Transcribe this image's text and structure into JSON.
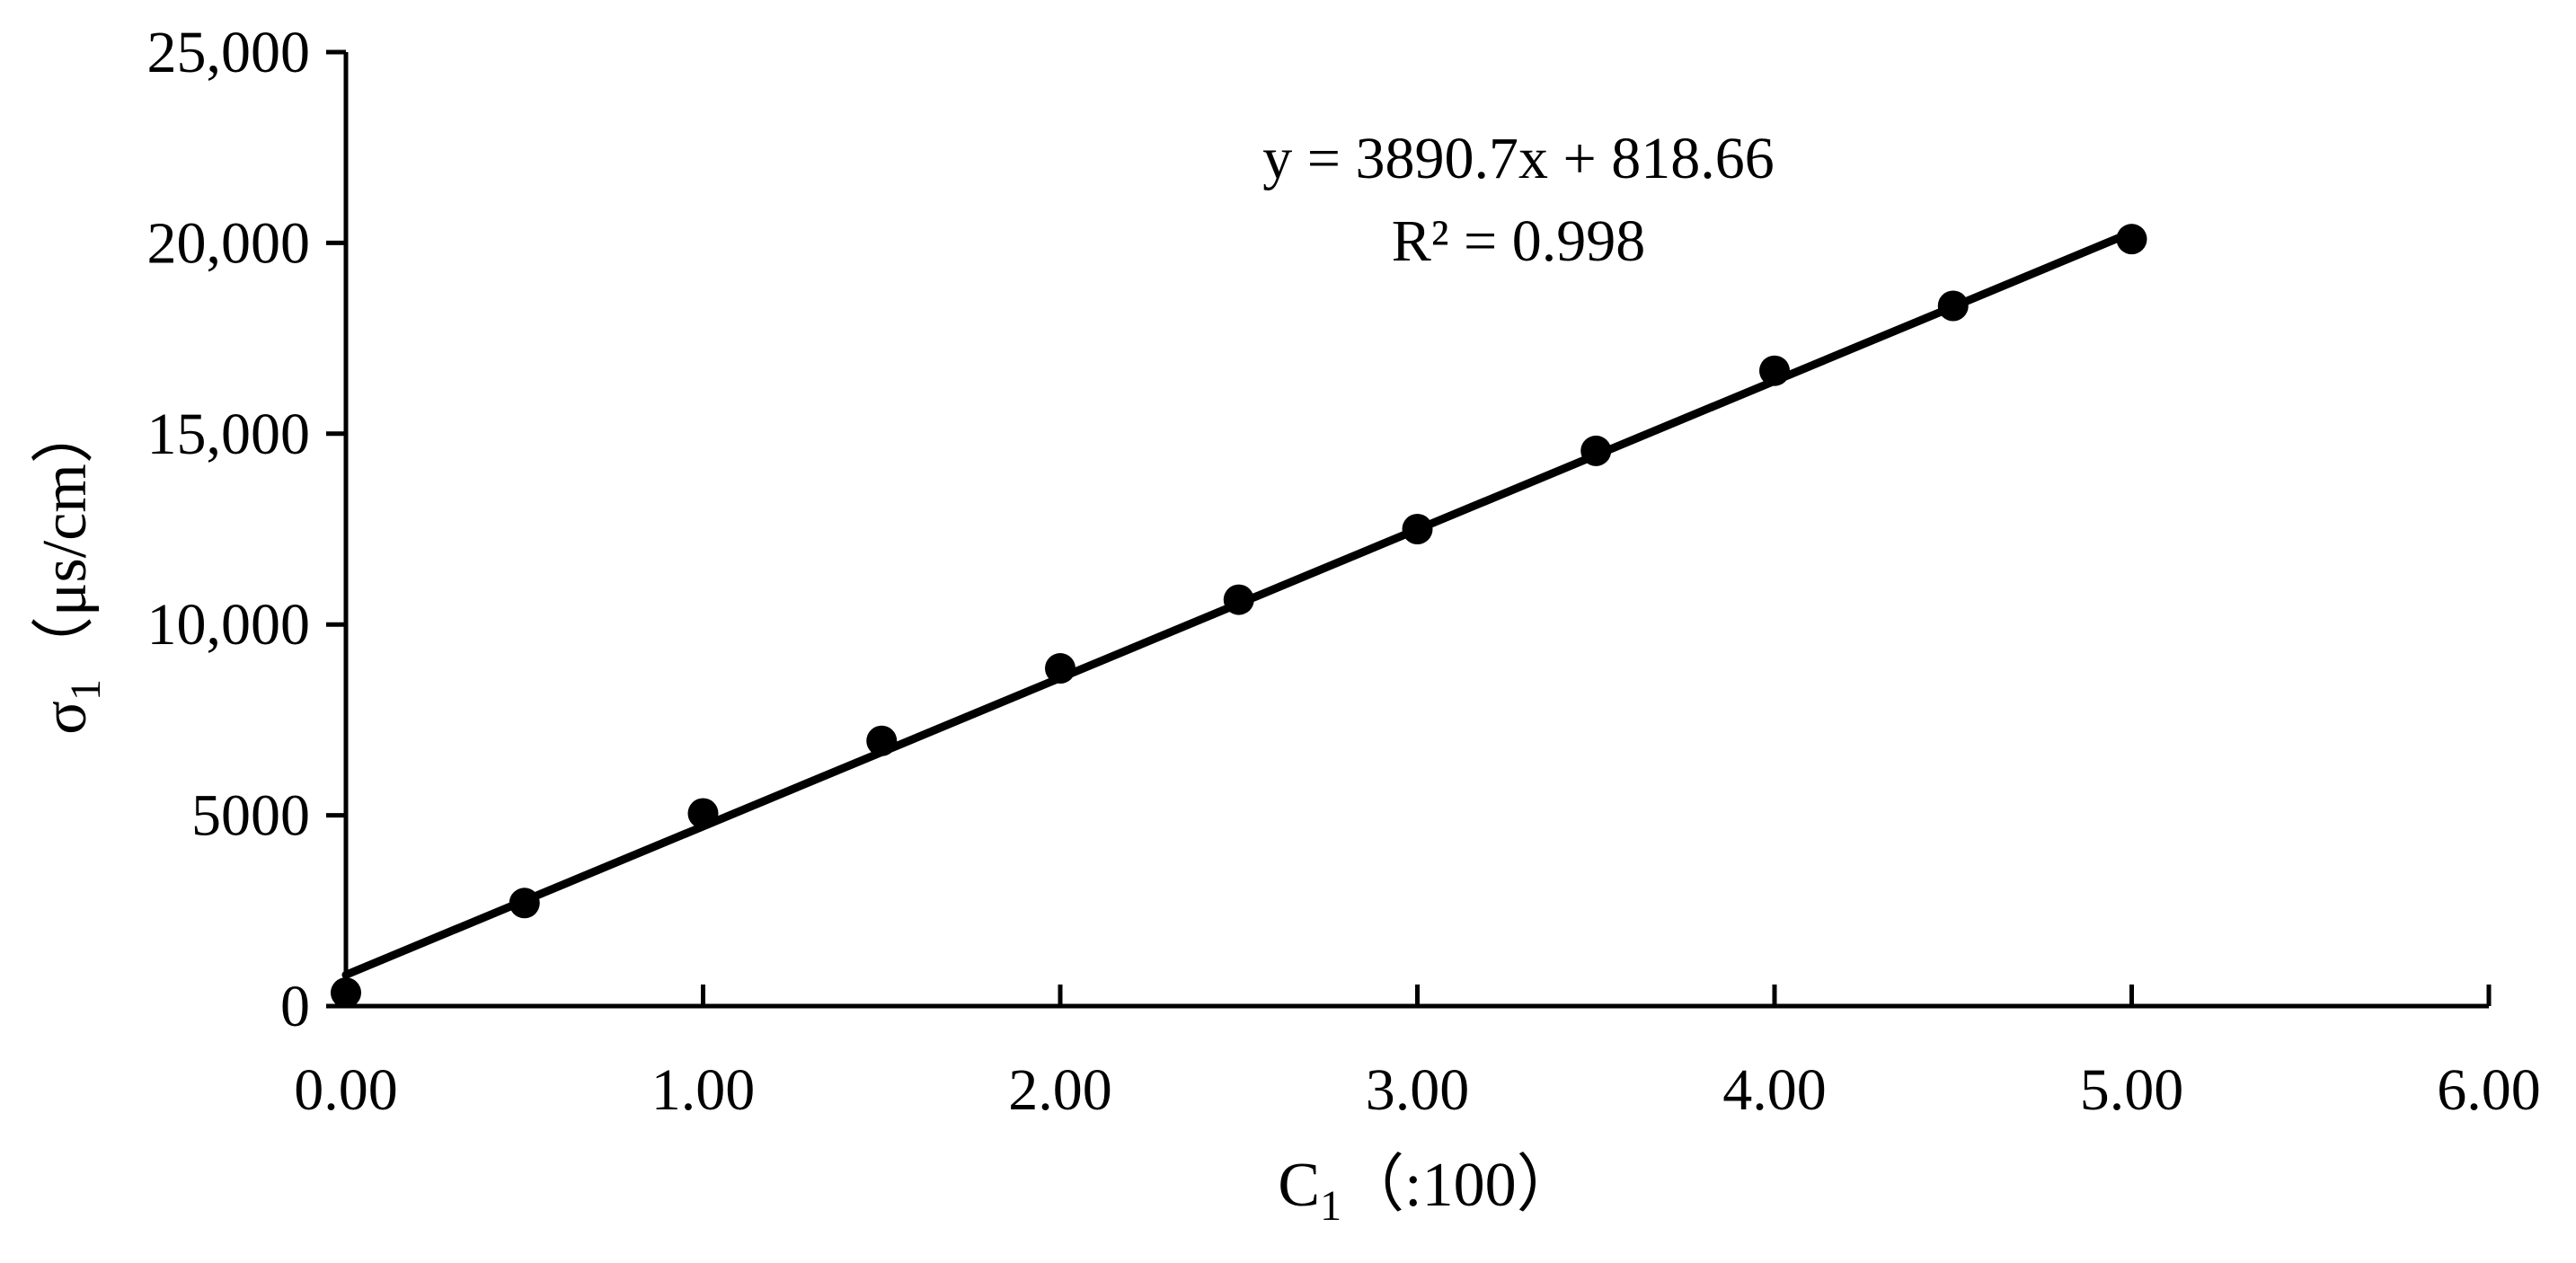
{
  "chart_data": {
    "type": "scatter",
    "x": [
      0.0,
      0.5,
      1.0,
      1.5,
      2.0,
      2.5,
      3.0,
      3.5,
      4.0,
      4.5,
      5.0
    ],
    "y": [
      350,
      2700,
      5050,
      6950,
      8850,
      10650,
      12500,
      14550,
      16650,
      18350,
      20100
    ],
    "trendline": {
      "type": "linear",
      "slope": 3890.7,
      "intercept": 818.66,
      "x_range": [
        0,
        5
      ],
      "equation_label": "y = 3890.7x + 818.66",
      "r2_label": "R² = 0.998"
    },
    "xlabel": {
      "main": "C",
      "sub": "1",
      "rest": "（:100）"
    },
    "ylabel": {
      "main": "σ",
      "sub": "1",
      "rest": "（μs/cm）"
    },
    "xlim": [
      0,
      6
    ],
    "ylim": [
      0,
      25000
    ],
    "xticks": [
      0,
      1,
      2,
      3,
      4,
      5,
      6
    ],
    "xtick_labels": [
      "0.00",
      "1.00",
      "2.00",
      "3.00",
      "4.00",
      "5.00",
      "6.00"
    ],
    "yticks": [
      0,
      5000,
      10000,
      15000,
      20000,
      25000
    ],
    "ytick_labels": [
      "0",
      "5000",
      "10,000",
      "15,000",
      "20,000",
      "25,000"
    ],
    "grid": false,
    "legend": false,
    "colors": {
      "marker": "#000000",
      "line": "#000000",
      "axis": "#000000"
    }
  }
}
